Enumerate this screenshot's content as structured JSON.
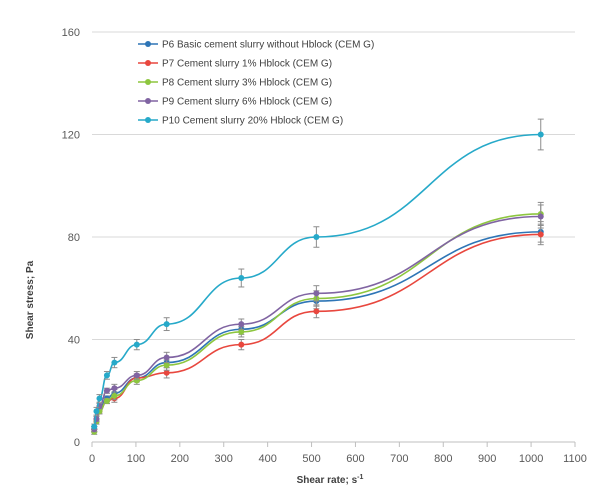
{
  "chart_data": {
    "type": "line",
    "xlabel": "Shear rate; s",
    "xlabel_sup": "-1",
    "ylabel": "Shear stress; Pa",
    "xlim": [
      0,
      1100
    ],
    "ylim": [
      0,
      160
    ],
    "x_ticks": [
      0,
      100,
      200,
      300,
      400,
      500,
      600,
      700,
      800,
      900,
      1000,
      1100
    ],
    "y_ticks": [
      0,
      40,
      80,
      120,
      160
    ],
    "grid": "horizontal",
    "legend_position": "top-left",
    "x": [
      5.1,
      10.2,
      17,
      34,
      51,
      102,
      170,
      340,
      511,
      1022
    ],
    "series": [
      {
        "name": "P6 Basic cement slurry without Hblock (CEM G)",
        "color": "#2e75b6",
        "values": [
          5,
          9,
          13,
          17,
          19,
          25,
          31,
          44,
          55,
          82
        ],
        "errors": [
          1,
          1,
          1,
          1,
          1.5,
          1.5,
          2,
          2,
          3,
          4
        ]
      },
      {
        "name": "P7 Cement slurry 1% Hblock (CEM G)",
        "color": "#e8473e",
        "values": [
          5,
          8,
          12,
          16,
          17,
          25,
          27,
          38,
          51,
          81
        ],
        "errors": [
          1,
          1,
          1,
          1,
          1.5,
          1.5,
          2,
          2,
          2.5,
          4
        ]
      },
      {
        "name": "P8 Cement slurry 3% Hblock (CEM G)",
        "color": "#8dc63f",
        "values": [
          4,
          8,
          12,
          16,
          18,
          24,
          30,
          43,
          56,
          89
        ],
        "errors": [
          1,
          1,
          1,
          1,
          1.5,
          1.5,
          2,
          2,
          3,
          4.5
        ]
      },
      {
        "name": "P9 Cement slurry 6% Hblock (CEM G)",
        "color": "#8064a2",
        "values": [
          5,
          9,
          14,
          20,
          21,
          26,
          33,
          46,
          58,
          88
        ],
        "errors": [
          1,
          1,
          1,
          1,
          1.5,
          1.5,
          2,
          2,
          3,
          4.5
        ]
      },
      {
        "name": "P10 Cement slurry 20% Hblock (CEM G)",
        "color": "#26a9c9",
        "values": [
          6,
          12,
          17,
          26,
          31,
          38,
          46,
          64,
          80,
          120
        ],
        "errors": [
          1,
          1.5,
          1.5,
          1.5,
          2,
          2,
          2.5,
          3.5,
          4,
          6
        ]
      }
    ]
  }
}
